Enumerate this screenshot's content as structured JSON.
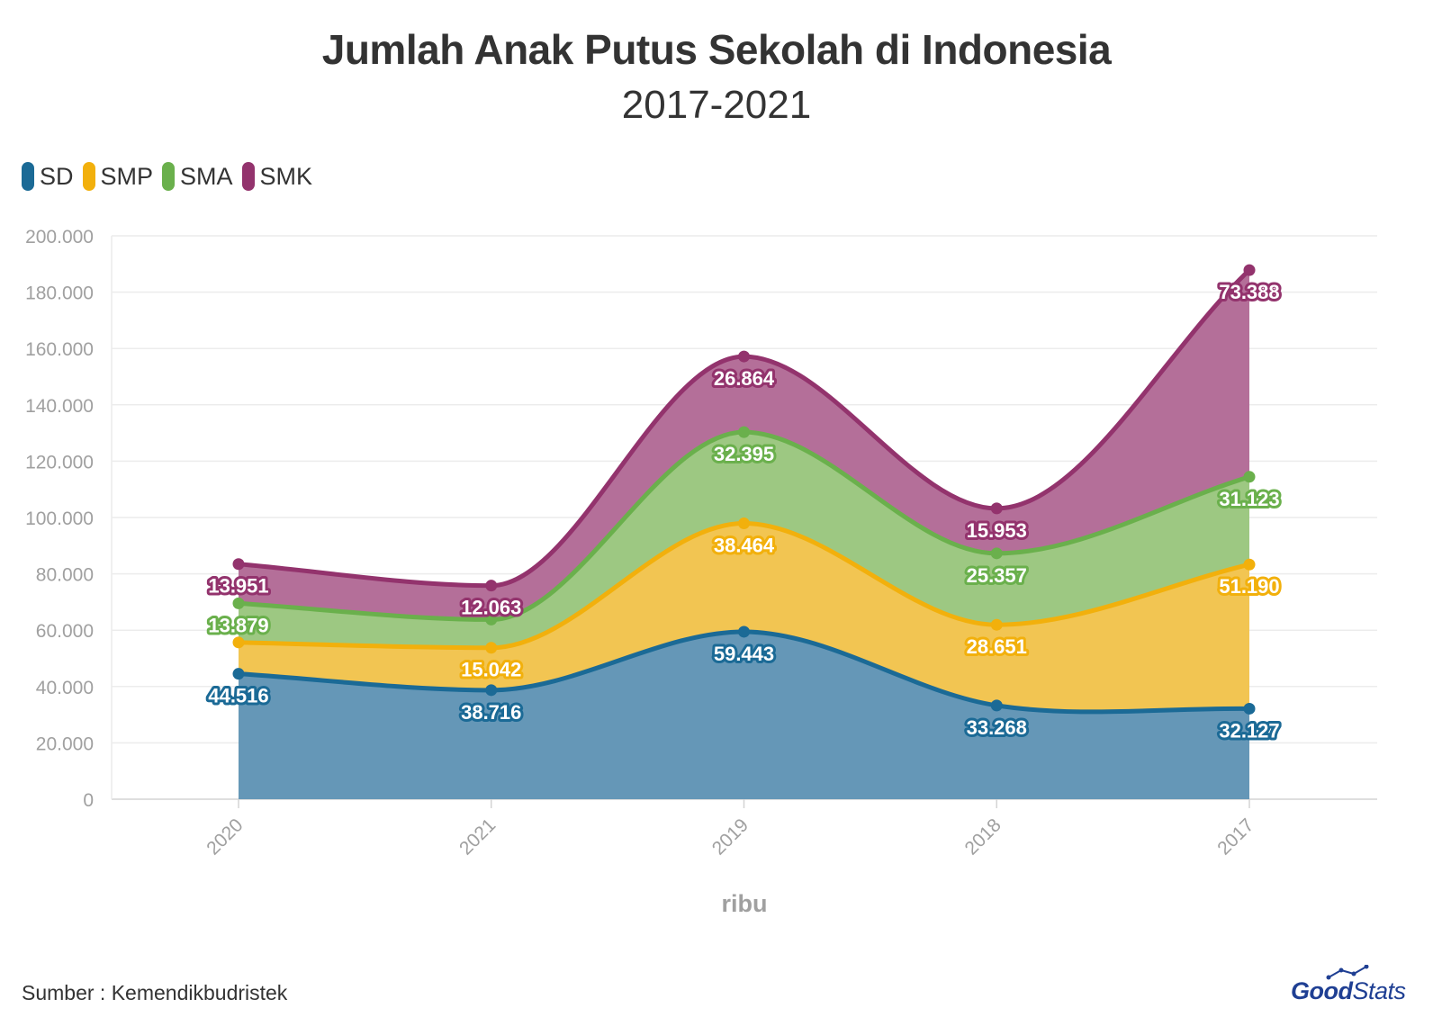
{
  "chart_data": {
    "type": "area",
    "stacked": true,
    "title": "Jumlah Anak Putus Sekolah di Indonesia",
    "subtitle": "2017-2021",
    "xlabel": "ribu",
    "ylabel": "",
    "categories": [
      "2020",
      "2021",
      "2019",
      "2018",
      "2017"
    ],
    "ylim": [
      0,
      200000
    ],
    "yticks": [
      0,
      20000,
      40000,
      60000,
      80000,
      100000,
      120000,
      140000,
      160000,
      180000,
      200000
    ],
    "ytick_labels": [
      "0",
      "20.000",
      "40.000",
      "60.000",
      "80.000",
      "100.000",
      "120.000",
      "140.000",
      "160.000",
      "180.000",
      "200.000"
    ],
    "grid": true,
    "legend_position": "top-left",
    "series": [
      {
        "name": "SD",
        "color": "#1b6a96",
        "fill": "#6597b7",
        "values": [
          44516,
          38716,
          59443,
          33268,
          32127
        ],
        "labels": [
          "44.516",
          "38.716",
          "59.443",
          "33.268",
          "32.127"
        ]
      },
      {
        "name": "SMP",
        "color": "#f2b00c",
        "fill": "#f2c552",
        "values": [
          11127,
          15042,
          38464,
          28651,
          51190
        ],
        "labels": [
          "",
          "15.042",
          "38.464",
          "28.651",
          "51.190"
        ]
      },
      {
        "name": "SMA",
        "color": "#6ab04c",
        "fill": "#9dc882",
        "values": [
          13879,
          10000,
          32395,
          25357,
          31123
        ],
        "labels": [
          "13.879",
          "",
          "32.395",
          "25.357",
          "31.123"
        ]
      },
      {
        "name": "SMK",
        "color": "#93336d",
        "fill": "#b46f99",
        "values": [
          13951,
          12063,
          26864,
          15953,
          73388
        ],
        "labels": [
          "13.951",
          "12.063",
          "26.864",
          "15.953",
          "73.388"
        ]
      }
    ]
  },
  "footer": {
    "source": "Sumber : Kemendikbudristek",
    "logo_good": "Good",
    "logo_stats": "Stats"
  }
}
